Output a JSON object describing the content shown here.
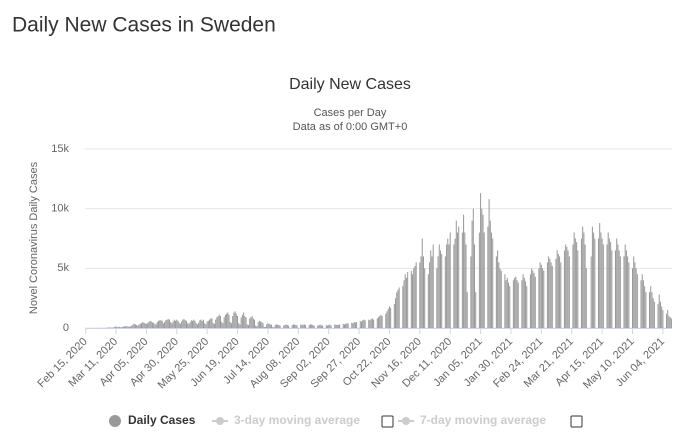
{
  "page_heading": "Daily New Cases in Sweden",
  "chart_data": {
    "type": "bar",
    "title": "Daily New Cases",
    "subtitle": "Cases per Day",
    "subtitle2": "Data as of 0:00 GMT+0",
    "y_label": "Novel Coronavirus Daily Cases",
    "ylim": [
      0,
      15000
    ],
    "yticks": [
      0,
      {
        "value": 5000,
        "label": "5k"
      },
      {
        "value": 10000,
        "label": "10k"
      },
      {
        "value": 15000,
        "label": "15k"
      }
    ],
    "grid": true,
    "categories": [
      "Feb 15, 2020",
      null,
      null,
      null,
      null,
      null,
      null,
      null,
      null,
      null,
      null,
      null,
      null,
      null,
      null,
      null,
      null,
      null,
      null,
      null,
      null,
      null,
      null,
      null,
      null,
      "Mar 11, 2020",
      null,
      null,
      null,
      null,
      null,
      null,
      null,
      null,
      null,
      null,
      null,
      null,
      null,
      null,
      null,
      null,
      null,
      null,
      null,
      null,
      null,
      null,
      null,
      null,
      "Apr 05, 2020",
      null,
      null,
      null,
      null,
      null,
      null,
      null,
      null,
      null,
      null,
      null,
      null,
      null,
      null,
      null,
      null,
      null,
      null,
      null,
      null,
      null,
      null,
      null,
      null,
      "Apr 30, 2020",
      null,
      null,
      null,
      null,
      null,
      null,
      null,
      null,
      null,
      null,
      null,
      null,
      null,
      null,
      null,
      null,
      null,
      null,
      null,
      null,
      null,
      null,
      null,
      null,
      "May 25, 2020",
      null,
      null,
      null,
      null,
      null,
      null,
      null,
      null,
      null,
      null,
      null,
      null,
      null,
      null,
      null,
      null,
      null,
      null,
      null,
      null,
      null,
      null,
      null,
      null,
      "Jun 19, 2020",
      null,
      null,
      null,
      null,
      null,
      null,
      null,
      null,
      null,
      null,
      null,
      null,
      null,
      null,
      null,
      null,
      null,
      null,
      null,
      null,
      null,
      null,
      null,
      null,
      "Jul 14, 2020",
      null,
      null,
      null,
      null,
      null,
      null,
      null,
      null,
      null,
      null,
      null,
      null,
      null,
      null,
      null,
      null,
      null,
      null,
      null,
      null,
      null,
      null,
      null,
      null,
      "Aug 08, 2020",
      null,
      null,
      null,
      null,
      null,
      null,
      null,
      null,
      null,
      null,
      null,
      null,
      null,
      null,
      null,
      null,
      null,
      null,
      null,
      null,
      null,
      null,
      null,
      null,
      "Sep 02, 2020",
      null,
      null,
      null,
      null,
      null,
      null,
      null,
      null,
      null,
      null,
      null,
      null,
      null,
      null,
      null,
      null,
      null,
      null,
      null,
      null,
      null,
      null,
      null,
      null,
      "Sep 27, 2020",
      null,
      null,
      null,
      null,
      null,
      null,
      null,
      null,
      null,
      null,
      null,
      null,
      null,
      null,
      null,
      null,
      null,
      null,
      null,
      null,
      null,
      null,
      null,
      null,
      "Oct 22, 2020",
      null,
      null,
      null,
      null,
      null,
      null,
      null,
      null,
      null,
      null,
      null,
      null,
      null,
      null,
      null,
      null,
      null,
      null,
      null,
      null,
      null,
      null,
      null,
      null,
      "Nov 16, 2020",
      null,
      null,
      null,
      null,
      null,
      null,
      null,
      null,
      null,
      null,
      null,
      null,
      null,
      null,
      null,
      null,
      null,
      null,
      null,
      null,
      null,
      null,
      null,
      null,
      "Dec 11, 2020",
      null,
      null,
      null,
      null,
      null,
      null,
      null,
      null,
      null,
      null,
      null,
      null,
      null,
      null,
      null,
      null,
      null,
      null,
      null,
      null,
      null,
      null,
      null,
      null,
      "Jan 05, 2021",
      null,
      null,
      null,
      null,
      null,
      null,
      null,
      null,
      null,
      null,
      null,
      null,
      null,
      null,
      null,
      null,
      null,
      null,
      null,
      null,
      null,
      null,
      null,
      null,
      "Jan 30, 2021",
      null,
      null,
      null,
      null,
      null,
      null,
      null,
      null,
      null,
      null,
      null,
      null,
      null,
      null,
      null,
      null,
      null,
      null,
      null,
      null,
      null,
      null,
      null,
      null,
      "Feb 24, 2021",
      null,
      null,
      null,
      null,
      null,
      null,
      null,
      null,
      null,
      null,
      null,
      null,
      null,
      null,
      null,
      null,
      null,
      null,
      null,
      null,
      null,
      null,
      null,
      null,
      "Mar 21, 2021",
      null,
      null,
      null,
      null,
      null,
      null,
      null,
      null,
      null,
      null,
      null,
      null,
      null,
      null,
      null,
      null,
      null,
      null,
      null,
      null,
      null,
      null,
      null,
      null,
      "Apr 15, 2021",
      null,
      null,
      null,
      null,
      null,
      null,
      null,
      null,
      null,
      null,
      null,
      null,
      null,
      null,
      null,
      null,
      null,
      null,
      null,
      null,
      null,
      null,
      null,
      null,
      "May 10, 2021",
      null,
      null,
      null,
      null,
      null,
      null,
      null,
      null,
      null,
      null,
      null,
      null,
      null,
      null,
      null,
      null,
      null,
      null,
      null,
      null,
      null,
      null,
      null,
      null,
      "Jun 04, 2021",
      null,
      null,
      null,
      null,
      null,
      null,
      null
    ],
    "series": [
      {
        "name": "Daily Cases",
        "color": "#999999",
        "values": [
          0,
          0,
          0,
          0,
          0,
          0,
          0,
          0,
          0,
          0,
          1,
          2,
          3,
          0,
          5,
          2,
          5,
          15,
          20,
          60,
          35,
          40,
          20,
          60,
          100,
          150,
          70,
          80,
          100,
          60,
          80,
          120,
          130,
          150,
          140,
          130,
          100,
          150,
          200,
          300,
          350,
          300,
          250,
          200,
          300,
          350,
          400,
          500,
          450,
          400,
          350,
          400,
          500,
          600,
          550,
          450,
          450,
          300,
          350,
          500,
          600,
          650,
          650,
          600,
          400,
          500,
          650,
          700,
          750,
          700,
          500,
          400,
          550,
          700,
          600,
          700,
          600,
          450,
          350,
          550,
          700,
          750,
          650,
          600,
          400,
          350,
          500,
          650,
          600,
          700,
          600,
          400,
          300,
          450,
          650,
          700,
          600,
          700,
          400,
          300,
          550,
          600,
          700,
          800,
          800,
          400,
          350,
          700,
          900,
          1000,
          1100,
          1000,
          500,
          400,
          900,
          1100,
          1200,
          1300,
          1100,
          500,
          400,
          1000,
          1300,
          1400,
          1200,
          1000,
          400,
          300,
          900,
          1100,
          1300,
          1000,
          900,
          300,
          250,
          800,
          900,
          1000,
          800,
          700,
          200,
          150,
          500,
          600,
          550,
          500,
          400,
          100,
          80,
          300,
          400,
          350,
          300,
          280,
          80,
          50,
          250,
          300,
          280,
          250,
          200,
          0,
          0,
          200,
          250,
          300,
          250,
          200,
          0,
          0,
          250,
          300,
          280,
          250,
          220,
          0,
          0,
          300,
          250,
          280,
          300,
          250,
          0,
          0,
          250,
          300,
          300,
          250,
          200,
          0,
          0,
          200,
          250,
          280,
          220,
          200,
          0,
          0,
          250,
          200,
          250,
          280,
          200,
          0,
          0,
          300,
          250,
          280,
          250,
          300,
          0,
          0,
          350,
          300,
          350,
          400,
          380,
          0,
          0,
          450,
          400,
          500,
          450,
          500,
          0,
          0,
          600,
          550,
          650,
          700,
          650,
          0,
          0,
          700,
          650,
          750,
          800,
          700,
          0,
          0,
          800,
          900,
          1000,
          1100,
          1000,
          0,
          0,
          1200,
          1400,
          1600,
          1800,
          1700,
          0,
          0,
          2000,
          2500,
          3000,
          3200,
          3400,
          0,
          0,
          3500,
          4000,
          4500,
          4200,
          4700,
          0,
          0,
          4800,
          4500,
          5000,
          5200,
          5500,
          0,
          0,
          5500,
          6000,
          7500,
          6000,
          5000,
          0,
          0,
          4500,
          5500,
          6500,
          6000,
          7000,
          0,
          0,
          5000,
          6000,
          7000,
          6500,
          6200,
          0,
          0,
          6000,
          7000,
          7500,
          7000,
          8000,
          0,
          0,
          7000,
          7500,
          9000,
          8000,
          8500,
          0,
          0,
          8000,
          9500,
          8000,
          7000,
          3000,
          0,
          0,
          6000,
          9000,
          10000,
          7000,
          3000,
          0,
          0,
          8000,
          11300,
          10000,
          9500,
          8000,
          0,
          0,
          8500,
          10800,
          9000,
          8000,
          7500,
          0,
          0,
          6000,
          6500,
          5500,
          5000,
          4800,
          0,
          0,
          4500,
          4000,
          4200,
          3800,
          3500,
          0,
          0,
          4000,
          4200,
          4300,
          4000,
          3800,
          0,
          0,
          4000,
          4500,
          4200,
          3900,
          3500,
          0,
          0,
          4500,
          5000,
          4800,
          4600,
          4300,
          0,
          0,
          5000,
          5500,
          5300,
          5000,
          4800,
          0,
          0,
          5500,
          6000,
          5800,
          5500,
          5200,
          0,
          0,
          5800,
          6500,
          6200,
          6000,
          5500,
          0,
          0,
          6500,
          7000,
          6800,
          6500,
          6000,
          0,
          0,
          7000,
          8000,
          7500,
          7200,
          6500,
          0,
          0,
          7500,
          8500,
          8000,
          7000,
          5000,
          0,
          0,
          0,
          6000,
          8500,
          8000,
          7500,
          0,
          0,
          7500,
          8800,
          8000,
          7500,
          7000,
          0,
          0,
          7000,
          8000,
          7500,
          7200,
          6500,
          0,
          0,
          6500,
          7500,
          7000,
          6500,
          6000,
          0,
          0,
          6000,
          7000,
          6500,
          6000,
          5500,
          0,
          0,
          5000,
          6000,
          5500,
          5000,
          4500,
          0,
          0,
          4000,
          4500,
          4000,
          3500,
          3000,
          0,
          0,
          3000,
          3500,
          3000,
          2500,
          2200,
          0,
          0,
          2000,
          2800,
          2200,
          1800,
          1500,
          0,
          0,
          1200,
          1500,
          1000,
          900,
          800
        ]
      }
    ],
    "inactive_series": [
      {
        "name": "3-day moving average",
        "color": "#cccccc"
      },
      {
        "name": "7-day moving average",
        "color": "#cccccc"
      }
    ]
  }
}
